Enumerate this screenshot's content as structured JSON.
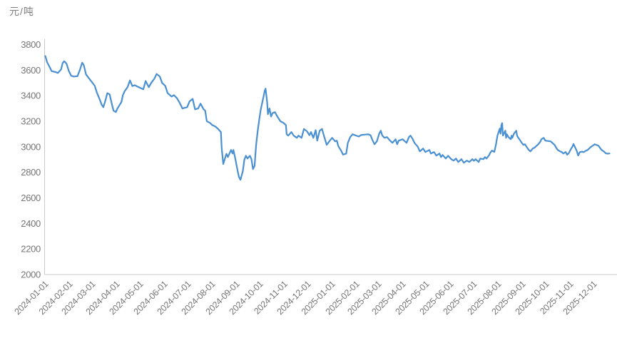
{
  "chart_data": {
    "type": "line",
    "title": "",
    "ylabel": "元/吨",
    "xlabel": "",
    "grid": false,
    "legend_position": "none",
    "ylim": [
      2000,
      3800
    ],
    "ytick_step": 200,
    "yticks": [
      2000,
      2200,
      2400,
      2600,
      2800,
      3000,
      3200,
      3400,
      3600,
      3800
    ],
    "x_range": [
      "2024-01-01",
      "2026-01-01"
    ],
    "xticks": [
      "2024-01-01",
      "2024-02-01",
      "2024-03-01",
      "2024-04-01",
      "2024-05-01",
      "2024-06-01",
      "2024-07-01",
      "2024-08-01",
      "2024-09-01",
      "2024-10-01",
      "2024-11-01",
      "2024-12-01",
      "2025-01-01",
      "2025-02-01",
      "2025-03-01",
      "2025-04-01",
      "2025-05-01",
      "2025-06-01",
      "2025-07-01",
      "2025-08-01",
      "2025-09-01",
      "2025-10-01",
      "2025-11-01",
      "2025-12-01"
    ],
    "colors": {
      "line": "#4a90d2",
      "axis": "#c9c9c9",
      "tick_label": "#767676",
      "unit_label": "#7f7f7f",
      "background": "#ffffff"
    },
    "series": [
      {
        "name": "",
        "points": [
          [
            "2024-01-02",
            3710
          ],
          [
            "2024-01-04",
            3665
          ],
          [
            "2024-01-08",
            3618
          ],
          [
            "2024-01-10",
            3592
          ],
          [
            "2024-01-15",
            3585
          ],
          [
            "2024-01-18",
            3578
          ],
          [
            "2024-01-22",
            3605
          ],
          [
            "2024-01-24",
            3655
          ],
          [
            "2024-01-26",
            3670
          ],
          [
            "2024-01-29",
            3650
          ],
          [
            "2024-02-01",
            3592
          ],
          [
            "2024-02-04",
            3556
          ],
          [
            "2024-02-07",
            3550
          ],
          [
            "2024-02-12",
            3552
          ],
          [
            "2024-02-15",
            3600
          ],
          [
            "2024-02-18",
            3658
          ],
          [
            "2024-02-20",
            3640
          ],
          [
            "2024-02-23",
            3565
          ],
          [
            "2024-02-27",
            3533
          ],
          [
            "2024-03-01",
            3510
          ],
          [
            "2024-03-05",
            3477
          ],
          [
            "2024-03-08",
            3420
          ],
          [
            "2024-03-11",
            3376
          ],
          [
            "2024-03-14",
            3328
          ],
          [
            "2024-03-16",
            3310
          ],
          [
            "2024-03-19",
            3370
          ],
          [
            "2024-03-21",
            3420
          ],
          [
            "2024-03-24",
            3410
          ],
          [
            "2024-03-27",
            3330
          ],
          [
            "2024-03-29",
            3282
          ],
          [
            "2024-04-01",
            3272
          ],
          [
            "2024-04-03",
            3300
          ],
          [
            "2024-04-08",
            3350
          ],
          [
            "2024-04-10",
            3404
          ],
          [
            "2024-04-12",
            3432
          ],
          [
            "2024-04-16",
            3468
          ],
          [
            "2024-04-19",
            3520
          ],
          [
            "2024-04-22",
            3475
          ],
          [
            "2024-04-25",
            3482
          ],
          [
            "2024-04-29",
            3470
          ],
          [
            "2024-05-06",
            3450
          ],
          [
            "2024-05-09",
            3515
          ],
          [
            "2024-05-13",
            3466
          ],
          [
            "2024-05-16",
            3500
          ],
          [
            "2024-05-20",
            3532
          ],
          [
            "2024-05-23",
            3570
          ],
          [
            "2024-05-27",
            3550
          ],
          [
            "2024-05-30",
            3500
          ],
          [
            "2024-06-03",
            3477
          ],
          [
            "2024-06-06",
            3420
          ],
          [
            "2024-06-11",
            3393
          ],
          [
            "2024-06-14",
            3404
          ],
          [
            "2024-06-18",
            3380
          ],
          [
            "2024-06-21",
            3349
          ],
          [
            "2024-06-25",
            3300
          ],
          [
            "2024-06-28",
            3305
          ],
          [
            "2024-07-01",
            3310
          ],
          [
            "2024-07-04",
            3355
          ],
          [
            "2024-07-08",
            3375
          ],
          [
            "2024-07-11",
            3293
          ],
          [
            "2024-07-15",
            3300
          ],
          [
            "2024-07-18",
            3338
          ],
          [
            "2024-07-22",
            3293
          ],
          [
            "2024-07-24",
            3282
          ],
          [
            "2024-07-26",
            3200
          ],
          [
            "2024-07-30",
            3187
          ],
          [
            "2024-08-02",
            3170
          ],
          [
            "2024-08-06",
            3158
          ],
          [
            "2024-08-09",
            3142
          ],
          [
            "2024-08-13",
            3115
          ],
          [
            "2024-08-14",
            2990
          ],
          [
            "2024-08-16",
            2865
          ],
          [
            "2024-08-20",
            2945
          ],
          [
            "2024-08-22",
            2920
          ],
          [
            "2024-08-26",
            2975
          ],
          [
            "2024-08-28",
            2947
          ],
          [
            "2024-08-29",
            2975
          ],
          [
            "2024-08-31",
            2920
          ],
          [
            "2024-09-03",
            2825
          ],
          [
            "2024-09-05",
            2765
          ],
          [
            "2024-09-07",
            2741
          ],
          [
            "2024-09-10",
            2808
          ],
          [
            "2024-09-12",
            2900
          ],
          [
            "2024-09-14",
            2930
          ],
          [
            "2024-09-16",
            2908
          ],
          [
            "2024-09-19",
            2930
          ],
          [
            "2024-09-21",
            2903
          ],
          [
            "2024-09-23",
            2825
          ],
          [
            "2024-09-25",
            2850
          ],
          [
            "2024-09-27",
            3015
          ],
          [
            "2024-09-29",
            3125
          ],
          [
            "2024-10-01",
            3215
          ],
          [
            "2024-10-03",
            3295
          ],
          [
            "2024-10-06",
            3380
          ],
          [
            "2024-10-08",
            3440
          ],
          [
            "2024-10-09",
            3455
          ],
          [
            "2024-10-11",
            3350
          ],
          [
            "2024-10-12",
            3255
          ],
          [
            "2024-10-14",
            3300
          ],
          [
            "2024-10-16",
            3237
          ],
          [
            "2024-10-18",
            3265
          ],
          [
            "2024-10-21",
            3271
          ],
          [
            "2024-10-24",
            3237
          ],
          [
            "2024-10-28",
            3200
          ],
          [
            "2024-11-01",
            3187
          ],
          [
            "2024-11-04",
            3170
          ],
          [
            "2024-11-05",
            3098
          ],
          [
            "2024-11-07",
            3087
          ],
          [
            "2024-11-11",
            3115
          ],
          [
            "2024-11-14",
            3087
          ],
          [
            "2024-11-18",
            3070
          ],
          [
            "2024-11-20",
            3087
          ],
          [
            "2024-11-24",
            3070
          ],
          [
            "2024-11-27",
            3140
          ],
          [
            "2024-12-01",
            3120
          ],
          [
            "2024-12-04",
            3090
          ],
          [
            "2024-12-06",
            3115
          ],
          [
            "2024-12-09",
            3070
          ],
          [
            "2024-12-12",
            3130
          ],
          [
            "2024-12-14",
            3048
          ],
          [
            "2024-12-17",
            3125
          ],
          [
            "2024-12-20",
            3140
          ],
          [
            "2024-12-23",
            3076
          ],
          [
            "2024-12-26",
            3015
          ],
          [
            "2024-12-30",
            3048
          ],
          [
            "2025-01-02",
            3070
          ],
          [
            "2025-01-06",
            3042
          ],
          [
            "2025-01-08",
            3048
          ],
          [
            "2025-01-10",
            3003
          ],
          [
            "2025-01-13",
            2975
          ],
          [
            "2025-01-16",
            2938
          ],
          [
            "2025-01-20",
            2947
          ],
          [
            "2025-01-22",
            3030
          ],
          [
            "2025-01-25",
            3075
          ],
          [
            "2025-01-28",
            3098
          ],
          [
            "2025-02-05",
            3080
          ],
          [
            "2025-02-08",
            3092
          ],
          [
            "2025-02-12",
            3095
          ],
          [
            "2025-02-17",
            3098
          ],
          [
            "2025-02-20",
            3090
          ],
          [
            "2025-02-22",
            3059
          ],
          [
            "2025-02-25",
            3020
          ],
          [
            "2025-02-28",
            3042
          ],
          [
            "2025-03-03",
            3103
          ],
          [
            "2025-03-05",
            3126
          ],
          [
            "2025-03-07",
            3087
          ],
          [
            "2025-03-10",
            3070
          ],
          [
            "2025-03-13",
            3076
          ],
          [
            "2025-03-17",
            3048
          ],
          [
            "2025-03-20",
            3031
          ],
          [
            "2025-03-24",
            3059
          ],
          [
            "2025-03-26",
            3020
          ],
          [
            "2025-03-28",
            3048
          ],
          [
            "2025-04-02",
            3059
          ],
          [
            "2025-04-07",
            3031
          ],
          [
            "2025-04-10",
            3076
          ],
          [
            "2025-04-12",
            3087
          ],
          [
            "2025-04-15",
            3059
          ],
          [
            "2025-04-17",
            3031
          ],
          [
            "2025-04-21",
            3003
          ],
          [
            "2025-04-24",
            2964
          ],
          [
            "2025-04-28",
            2986
          ],
          [
            "2025-05-01",
            2959
          ],
          [
            "2025-05-06",
            2975
          ],
          [
            "2025-05-08",
            2947
          ],
          [
            "2025-05-12",
            2959
          ],
          [
            "2025-05-15",
            2931
          ],
          [
            "2025-05-19",
            2947
          ],
          [
            "2025-05-21",
            2919
          ],
          [
            "2025-05-23",
            2936
          ],
          [
            "2025-05-27",
            2908
          ],
          [
            "2025-05-30",
            2930
          ],
          [
            "2025-06-03",
            2903
          ],
          [
            "2025-06-06",
            2892
          ],
          [
            "2025-06-09",
            2908
          ],
          [
            "2025-06-12",
            2881
          ],
          [
            "2025-06-16",
            2903
          ],
          [
            "2025-06-19",
            2875
          ],
          [
            "2025-06-23",
            2892
          ],
          [
            "2025-06-26",
            2881
          ],
          [
            "2025-06-30",
            2903
          ],
          [
            "2025-07-02",
            2890
          ],
          [
            "2025-07-04",
            2903
          ],
          [
            "2025-07-08",
            2881
          ],
          [
            "2025-07-10",
            2908
          ],
          [
            "2025-07-14",
            2903
          ],
          [
            "2025-07-16",
            2919
          ],
          [
            "2025-07-18",
            2908
          ],
          [
            "2025-07-21",
            2931
          ],
          [
            "2025-07-23",
            2955
          ],
          [
            "2025-07-25",
            2970
          ],
          [
            "2025-07-28",
            2960
          ],
          [
            "2025-07-30",
            3014
          ],
          [
            "2025-08-01",
            3087
          ],
          [
            "2025-08-04",
            3142
          ],
          [
            "2025-08-05",
            3103
          ],
          [
            "2025-08-06",
            3170
          ],
          [
            "2025-08-07",
            3185
          ],
          [
            "2025-08-08",
            3087
          ],
          [
            "2025-08-11",
            3126
          ],
          [
            "2025-08-12",
            3070
          ],
          [
            "2025-08-13",
            3098
          ],
          [
            "2025-08-15",
            3076
          ],
          [
            "2025-08-18",
            3059
          ],
          [
            "2025-08-19",
            3087
          ],
          [
            "2025-08-20",
            3070
          ],
          [
            "2025-08-22",
            3103
          ],
          [
            "2025-08-25",
            3126
          ],
          [
            "2025-08-26",
            3087
          ],
          [
            "2025-08-27",
            3076
          ],
          [
            "2025-08-29",
            3059
          ],
          [
            "2025-09-01",
            3031
          ],
          [
            "2025-09-03",
            3015
          ],
          [
            "2025-09-05",
            3020
          ],
          [
            "2025-09-08",
            2992
          ],
          [
            "2025-09-10",
            2975
          ],
          [
            "2025-09-12",
            2964
          ],
          [
            "2025-09-15",
            2986
          ],
          [
            "2025-09-17",
            2992
          ],
          [
            "2025-09-19",
            3003
          ],
          [
            "2025-09-22",
            3020
          ],
          [
            "2025-09-25",
            3042
          ],
          [
            "2025-09-26",
            3059
          ],
          [
            "2025-09-29",
            3070
          ],
          [
            "2025-10-01",
            3048
          ],
          [
            "2025-10-08",
            3042
          ],
          [
            "2025-10-10",
            3031
          ],
          [
            "2025-10-13",
            3014
          ],
          [
            "2025-10-15",
            2992
          ],
          [
            "2025-10-17",
            2975
          ],
          [
            "2025-10-20",
            2964
          ],
          [
            "2025-10-22",
            2959
          ],
          [
            "2025-10-24",
            2947
          ],
          [
            "2025-10-27",
            2959
          ],
          [
            "2025-10-29",
            2938
          ],
          [
            "2025-10-31",
            2950
          ],
          [
            "2025-11-03",
            2985
          ],
          [
            "2025-11-05",
            3005
          ],
          [
            "2025-11-06",
            3022
          ],
          [
            "2025-11-10",
            2970
          ],
          [
            "2025-11-12",
            2932
          ],
          [
            "2025-11-14",
            2958
          ],
          [
            "2025-11-17",
            2962
          ],
          [
            "2025-11-19",
            2958
          ],
          [
            "2025-11-21",
            2966
          ],
          [
            "2025-11-24",
            2975
          ],
          [
            "2025-11-26",
            2986
          ],
          [
            "2025-11-28",
            2998
          ],
          [
            "2025-12-01",
            3010
          ],
          [
            "2025-12-03",
            3019
          ],
          [
            "2025-12-05",
            3015
          ],
          [
            "2025-12-08",
            3008
          ],
          [
            "2025-12-10",
            2990
          ],
          [
            "2025-12-12",
            2975
          ],
          [
            "2025-12-15",
            2962
          ],
          [
            "2025-12-17",
            2950
          ],
          [
            "2025-12-19",
            2946
          ],
          [
            "2025-12-22",
            2948
          ]
        ]
      }
    ]
  }
}
